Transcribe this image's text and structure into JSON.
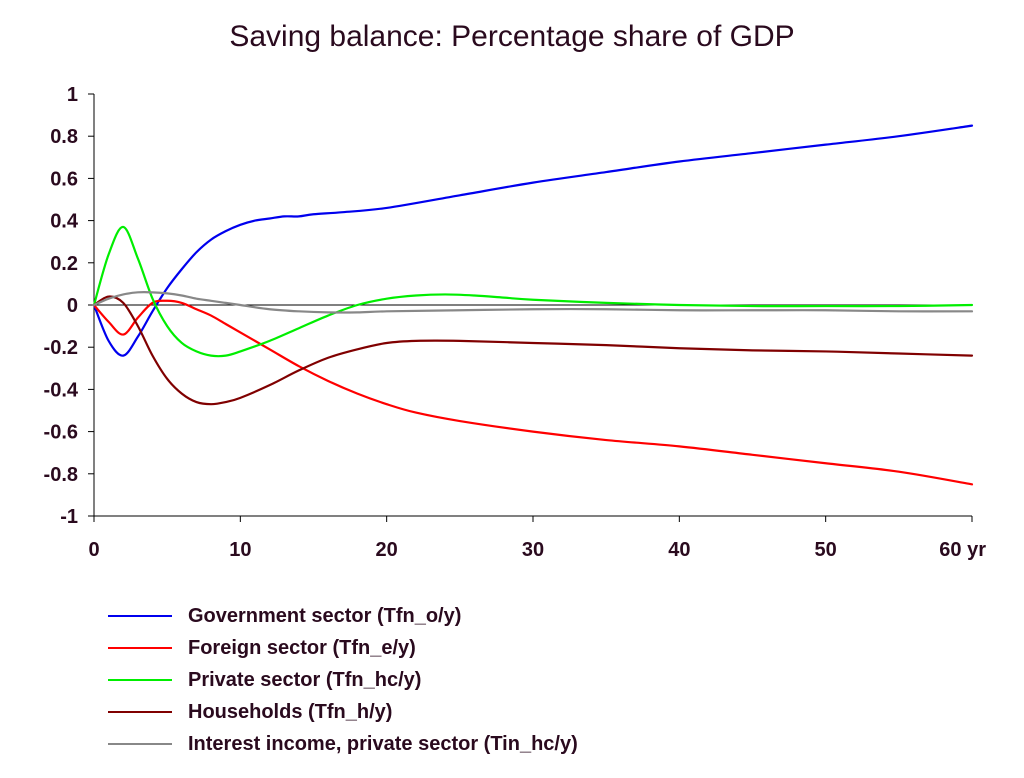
{
  "chart_data": {
    "type": "line",
    "title": "Saving balance: Percentage share of GDP",
    "xlabel": "",
    "ylabel": "",
    "x_unit": "yr",
    "xlim": [
      0,
      60
    ],
    "ylim": [
      -1,
      1
    ],
    "xticks": [
      0,
      10,
      20,
      30,
      40,
      50,
      60
    ],
    "xtick_labels": [
      "0",
      "10",
      "20",
      "30",
      "40",
      "50",
      "60 yr"
    ],
    "yticks": [
      1,
      0.8,
      0.6,
      0.4,
      0.2,
      0,
      -0.2,
      -0.4,
      -0.6,
      -0.8,
      -1
    ],
    "ytick_labels": [
      "1",
      "0.8",
      "0.6",
      "0.4",
      "0.2",
      "0",
      "-0.2",
      "-0.4",
      "-0.6",
      "-0.8",
      "-1"
    ],
    "grid": false,
    "zero_line": true,
    "legend_position": "bottom",
    "series": [
      {
        "name": "Government sector (Tfn_o/y)",
        "color": "#0000ee",
        "x": [
          0,
          1,
          2,
          3,
          4,
          5,
          6,
          7,
          8,
          9,
          10,
          11,
          12,
          13,
          14,
          15,
          17,
          20,
          25,
          30,
          35,
          40,
          45,
          50,
          55,
          60
        ],
        "y": [
          0,
          -0.17,
          -0.24,
          -0.15,
          -0.03,
          0.08,
          0.17,
          0.25,
          0.31,
          0.35,
          0.38,
          0.4,
          0.41,
          0.42,
          0.42,
          0.43,
          0.44,
          0.46,
          0.52,
          0.58,
          0.63,
          0.68,
          0.72,
          0.76,
          0.8,
          0.85
        ]
      },
      {
        "name": "Foreign sector (Tfn_e/y)",
        "color": "#ff0000",
        "x": [
          0,
          1,
          2,
          3,
          4,
          5,
          6,
          7,
          8,
          9,
          10,
          12,
          14,
          16,
          18,
          20,
          22,
          25,
          30,
          35,
          40,
          45,
          50,
          55,
          60
        ],
        "y": [
          0,
          -0.08,
          -0.14,
          -0.06,
          0.01,
          0.02,
          0.01,
          -0.02,
          -0.05,
          -0.09,
          -0.13,
          -0.21,
          -0.29,
          -0.36,
          -0.42,
          -0.47,
          -0.51,
          -0.55,
          -0.6,
          -0.64,
          -0.67,
          -0.71,
          -0.75,
          -0.79,
          -0.85
        ]
      },
      {
        "name": "Private sector (Tfn_hc/y)",
        "color": "#00ee00",
        "x": [
          0,
          1,
          2,
          3,
          4,
          5,
          6,
          7,
          8,
          9,
          10,
          12,
          14,
          16,
          18,
          20,
          22,
          24,
          26,
          28,
          30,
          35,
          40,
          45,
          50,
          55,
          60
        ],
        "y": [
          0,
          0.24,
          0.37,
          0.22,
          0.03,
          -0.1,
          -0.18,
          -0.22,
          -0.24,
          -0.24,
          -0.22,
          -0.17,
          -0.11,
          -0.05,
          0.0,
          0.03,
          0.045,
          0.05,
          0.045,
          0.035,
          0.025,
          0.01,
          0.0,
          -0.005,
          -0.005,
          -0.005,
          0.0
        ]
      },
      {
        "name": "Households (Tfn_h/y)",
        "color": "#800000",
        "x": [
          0,
          1,
          2,
          3,
          4,
          5,
          6,
          7,
          8,
          9,
          10,
          12,
          14,
          16,
          18,
          20,
          22,
          25,
          30,
          35,
          40,
          45,
          50,
          55,
          60
        ],
        "y": [
          0,
          0.04,
          0.01,
          -0.1,
          -0.24,
          -0.35,
          -0.42,
          -0.46,
          -0.47,
          -0.46,
          -0.44,
          -0.38,
          -0.31,
          -0.25,
          -0.21,
          -0.18,
          -0.17,
          -0.17,
          -0.18,
          -0.19,
          -0.205,
          -0.215,
          -0.22,
          -0.23,
          -0.24
        ]
      },
      {
        "name": "Interest income, private sector (Tin_hc/y)",
        "color": "#888888",
        "x": [
          0,
          1,
          2,
          3,
          4,
          5,
          6,
          7,
          8,
          9,
          10,
          12,
          14,
          16,
          18,
          20,
          25,
          30,
          35,
          40,
          45,
          50,
          55,
          60
        ],
        "y": [
          0,
          0.03,
          0.05,
          0.06,
          0.06,
          0.055,
          0.045,
          0.03,
          0.02,
          0.01,
          0.0,
          -0.02,
          -0.03,
          -0.035,
          -0.035,
          -0.03,
          -0.025,
          -0.02,
          -0.02,
          -0.025,
          -0.025,
          -0.025,
          -0.03,
          -0.03
        ]
      }
    ]
  }
}
